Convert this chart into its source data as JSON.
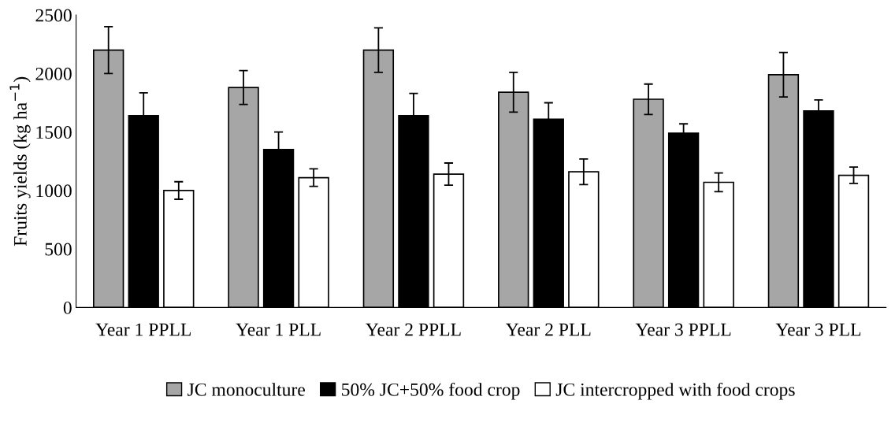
{
  "chart_data": {
    "type": "bar",
    "ylabel": "Fruits yields (kg ha$^{−1}$)",
    "categories": [
      "Year 1 PPLL",
      "Year 1 PLL",
      "Year 2 PPLL",
      "Year 2 PLL",
      "Year 3 PPLL",
      "Year 3 PLL"
    ],
    "series": [
      {
        "name": "JC monoculture",
        "color": "#a6a6a6",
        "values": [
          2200,
          1880,
          2200,
          1840,
          1780,
          1990
        ],
        "errors": [
          200,
          145,
          190,
          170,
          130,
          190
        ]
      },
      {
        "name": "50% JC+50% food crop",
        "color": "#000000",
        "values": [
          1640,
          1350,
          1640,
          1610,
          1490,
          1680
        ],
        "errors": [
          195,
          150,
          190,
          140,
          80,
          95
        ]
      },
      {
        "name": "JC intercropped with food crops",
        "color": "#ffffff",
        "values": [
          1000,
          1110,
          1140,
          1160,
          1070,
          1130
        ],
        "errors": [
          75,
          75,
          95,
          110,
          80,
          70
        ]
      }
    ],
    "ylim": [
      0,
      2500
    ],
    "yticks": [
      0,
      500,
      1000,
      1500,
      2000,
      2500
    ],
    "grid": false,
    "legend": "bottom"
  }
}
